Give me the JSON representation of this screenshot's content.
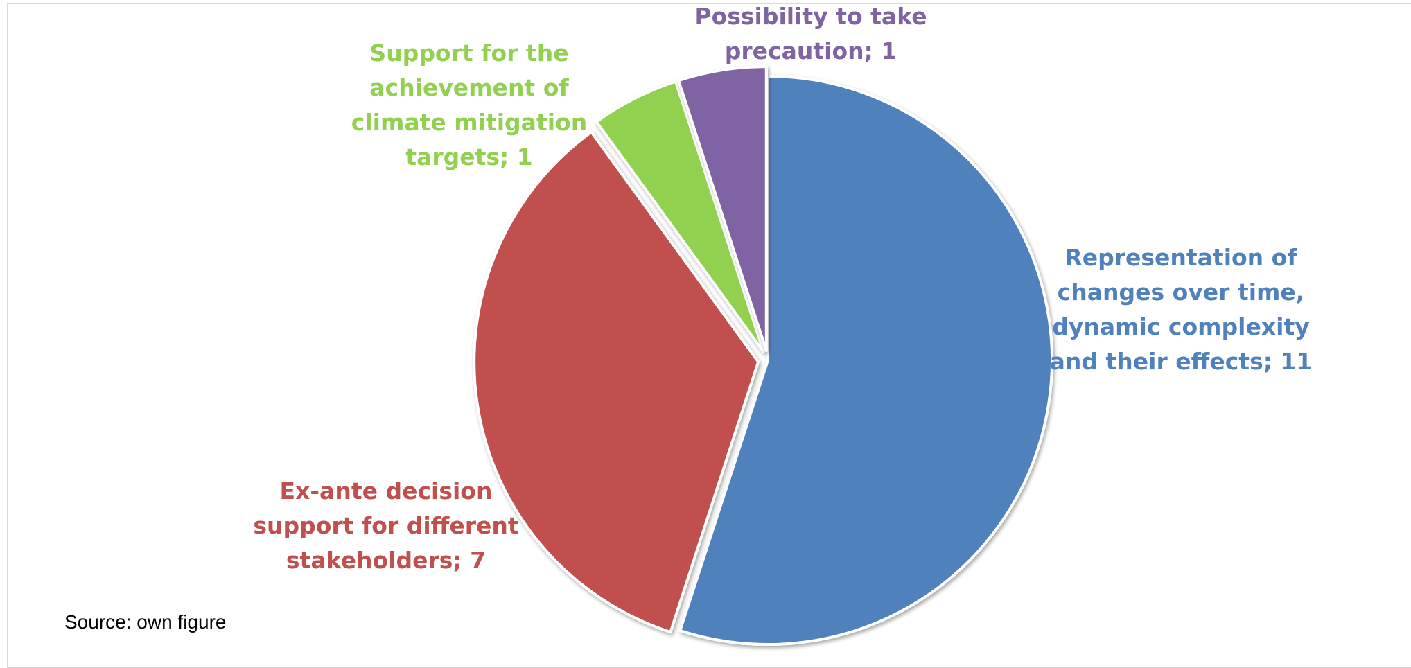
{
  "chart_data": {
    "type": "pie",
    "title": "",
    "start_angle_deg": 0,
    "direction": "clockwise",
    "slices": [
      {
        "label": "Representation of changes over time, dynamic complexity and their effects",
        "label_lines": [
          "Representation of",
          "changes over time,",
          "dynamic complexity",
          "and their effects; 11"
        ],
        "value": 11,
        "color": "#4f81bd",
        "exploded": false
      },
      {
        "label": "Ex-ante decision support for different stakeholders",
        "label_lines": [
          "Ex-ante decision",
          "support for different",
          "stakeholders; 7"
        ],
        "value": 7,
        "color": "#c0504d",
        "exploded": true
      },
      {
        "label": "Support for the achievement of climate mitigation targets",
        "label_lines": [
          "Support for the",
          "achievement of",
          "climate mitigation",
          "targets; 1"
        ],
        "value": 1,
        "color": "#92d050",
        "exploded": true
      },
      {
        "label": "Possibility to take precaution",
        "label_lines": [
          "Possibility to take",
          "precaution; 1"
        ],
        "value": 1,
        "color": "#8064a2",
        "exploded": true
      }
    ]
  },
  "source_note": "Source: own figure"
}
